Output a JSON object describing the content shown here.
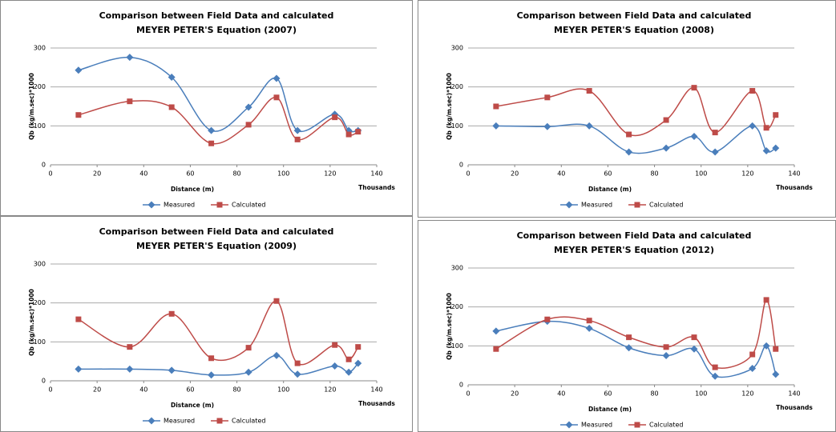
{
  "chart_data": [
    {
      "type": "line",
      "title": "Comparison between Field Data and calculated",
      "subtitle": "MEYER PETER'S Equation (2007)",
      "xlabel": "Distance (m)",
      "xunit": "Thousands",
      "ylabel": "Qb (kg/m.sec)*1000",
      "x": [
        12,
        34,
        52,
        69,
        85,
        97,
        106,
        122,
        128,
        132
      ],
      "series": [
        {
          "name": "Measured",
          "color": "#4a7ebb",
          "marker": "diamond",
          "values": [
            243,
            276,
            225,
            88,
            148,
            222,
            88,
            130,
            88,
            88
          ]
        },
        {
          "name": "Calculated",
          "color": "#be4b48",
          "marker": "square",
          "values": [
            128,
            163,
            148,
            55,
            103,
            173,
            65,
            122,
            78,
            85
          ]
        }
      ],
      "xlim": [
        0,
        140
      ],
      "xticks": [
        0,
        20,
        40,
        60,
        80,
        100,
        120,
        140
      ],
      "ylim": [
        0,
        300
      ],
      "yticks": [
        0,
        100,
        200,
        300
      ],
      "grid": true,
      "legend": "bottom"
    },
    {
      "type": "line",
      "title": "Comparison between Field Data and calculated",
      "subtitle": "MEYER PETER'S Equation (2008)",
      "xlabel": "Distance (m)",
      "xunit": "Thousands",
      "ylabel": "Qb (kg/m.sec)*1000",
      "x": [
        12,
        34,
        52,
        69,
        85,
        97,
        106,
        122,
        128,
        132
      ],
      "series": [
        {
          "name": "Measured",
          "color": "#4a7ebb",
          "marker": "diamond",
          "values": [
            100,
            98,
            100,
            33,
            43,
            73,
            33,
            100,
            36,
            43
          ]
        },
        {
          "name": "Calculated",
          "color": "#be4b48",
          "marker": "square",
          "values": [
            150,
            173,
            190,
            78,
            115,
            198,
            83,
            190,
            95,
            128
          ]
        }
      ],
      "xlim": [
        0,
        140
      ],
      "xticks": [
        0,
        20,
        40,
        60,
        80,
        100,
        120,
        140
      ],
      "ylim": [
        0,
        300
      ],
      "yticks": [
        0,
        100,
        200,
        300
      ],
      "grid": true,
      "legend": "bottom"
    },
    {
      "type": "line",
      "title": "Comparison between Field Data and calculated",
      "subtitle": "MEYER PETER'S Equation (2009)",
      "xlabel": "Distance (m)",
      "xunit": "Thousands",
      "ylabel": "Qb (kg/m.sec)*1000",
      "x": [
        12,
        34,
        52,
        69,
        85,
        97,
        106,
        122,
        128,
        132
      ],
      "series": [
        {
          "name": "Measured",
          "color": "#4a7ebb",
          "marker": "diamond",
          "values": [
            30,
            30,
            27,
            15,
            22,
            65,
            17,
            38,
            22,
            45
          ]
        },
        {
          "name": "Calculated",
          "color": "#be4b48",
          "marker": "square",
          "values": [
            158,
            87,
            172,
            58,
            85,
            205,
            45,
            92,
            55,
            87
          ]
        }
      ],
      "xlim": [
        0,
        140
      ],
      "xticks": [
        0,
        20,
        40,
        60,
        80,
        100,
        120,
        140
      ],
      "ylim": [
        0,
        300
      ],
      "yticks": [
        0,
        100,
        200,
        300
      ],
      "grid": true,
      "legend": "bottom"
    },
    {
      "type": "line",
      "title": "Comparison between Field Data and calculated",
      "subtitle": "MEYER PETER'S Equation (2012)",
      "xlabel": "Distance (m)",
      "xunit": "Thousands",
      "ylabel": "Qb (kg/m.sec)*1000",
      "x": [
        12,
        34,
        52,
        69,
        85,
        97,
        106,
        122,
        128,
        132
      ],
      "series": [
        {
          "name": "Measured",
          "color": "#4a7ebb",
          "marker": "diamond",
          "values": [
            138,
            163,
            145,
            95,
            75,
            92,
            22,
            42,
            100,
            27
          ]
        },
        {
          "name": "Calculated",
          "color": "#be4b48",
          "marker": "square",
          "values": [
            92,
            168,
            165,
            122,
            97,
            122,
            45,
            78,
            218,
            92
          ]
        }
      ],
      "xlim": [
        0,
        140
      ],
      "xticks": [
        0,
        20,
        40,
        60,
        80,
        100,
        120,
        140
      ],
      "ylim": [
        0,
        300
      ],
      "yticks": [
        0,
        100,
        200,
        300
      ],
      "grid": true,
      "legend": "bottom"
    }
  ]
}
